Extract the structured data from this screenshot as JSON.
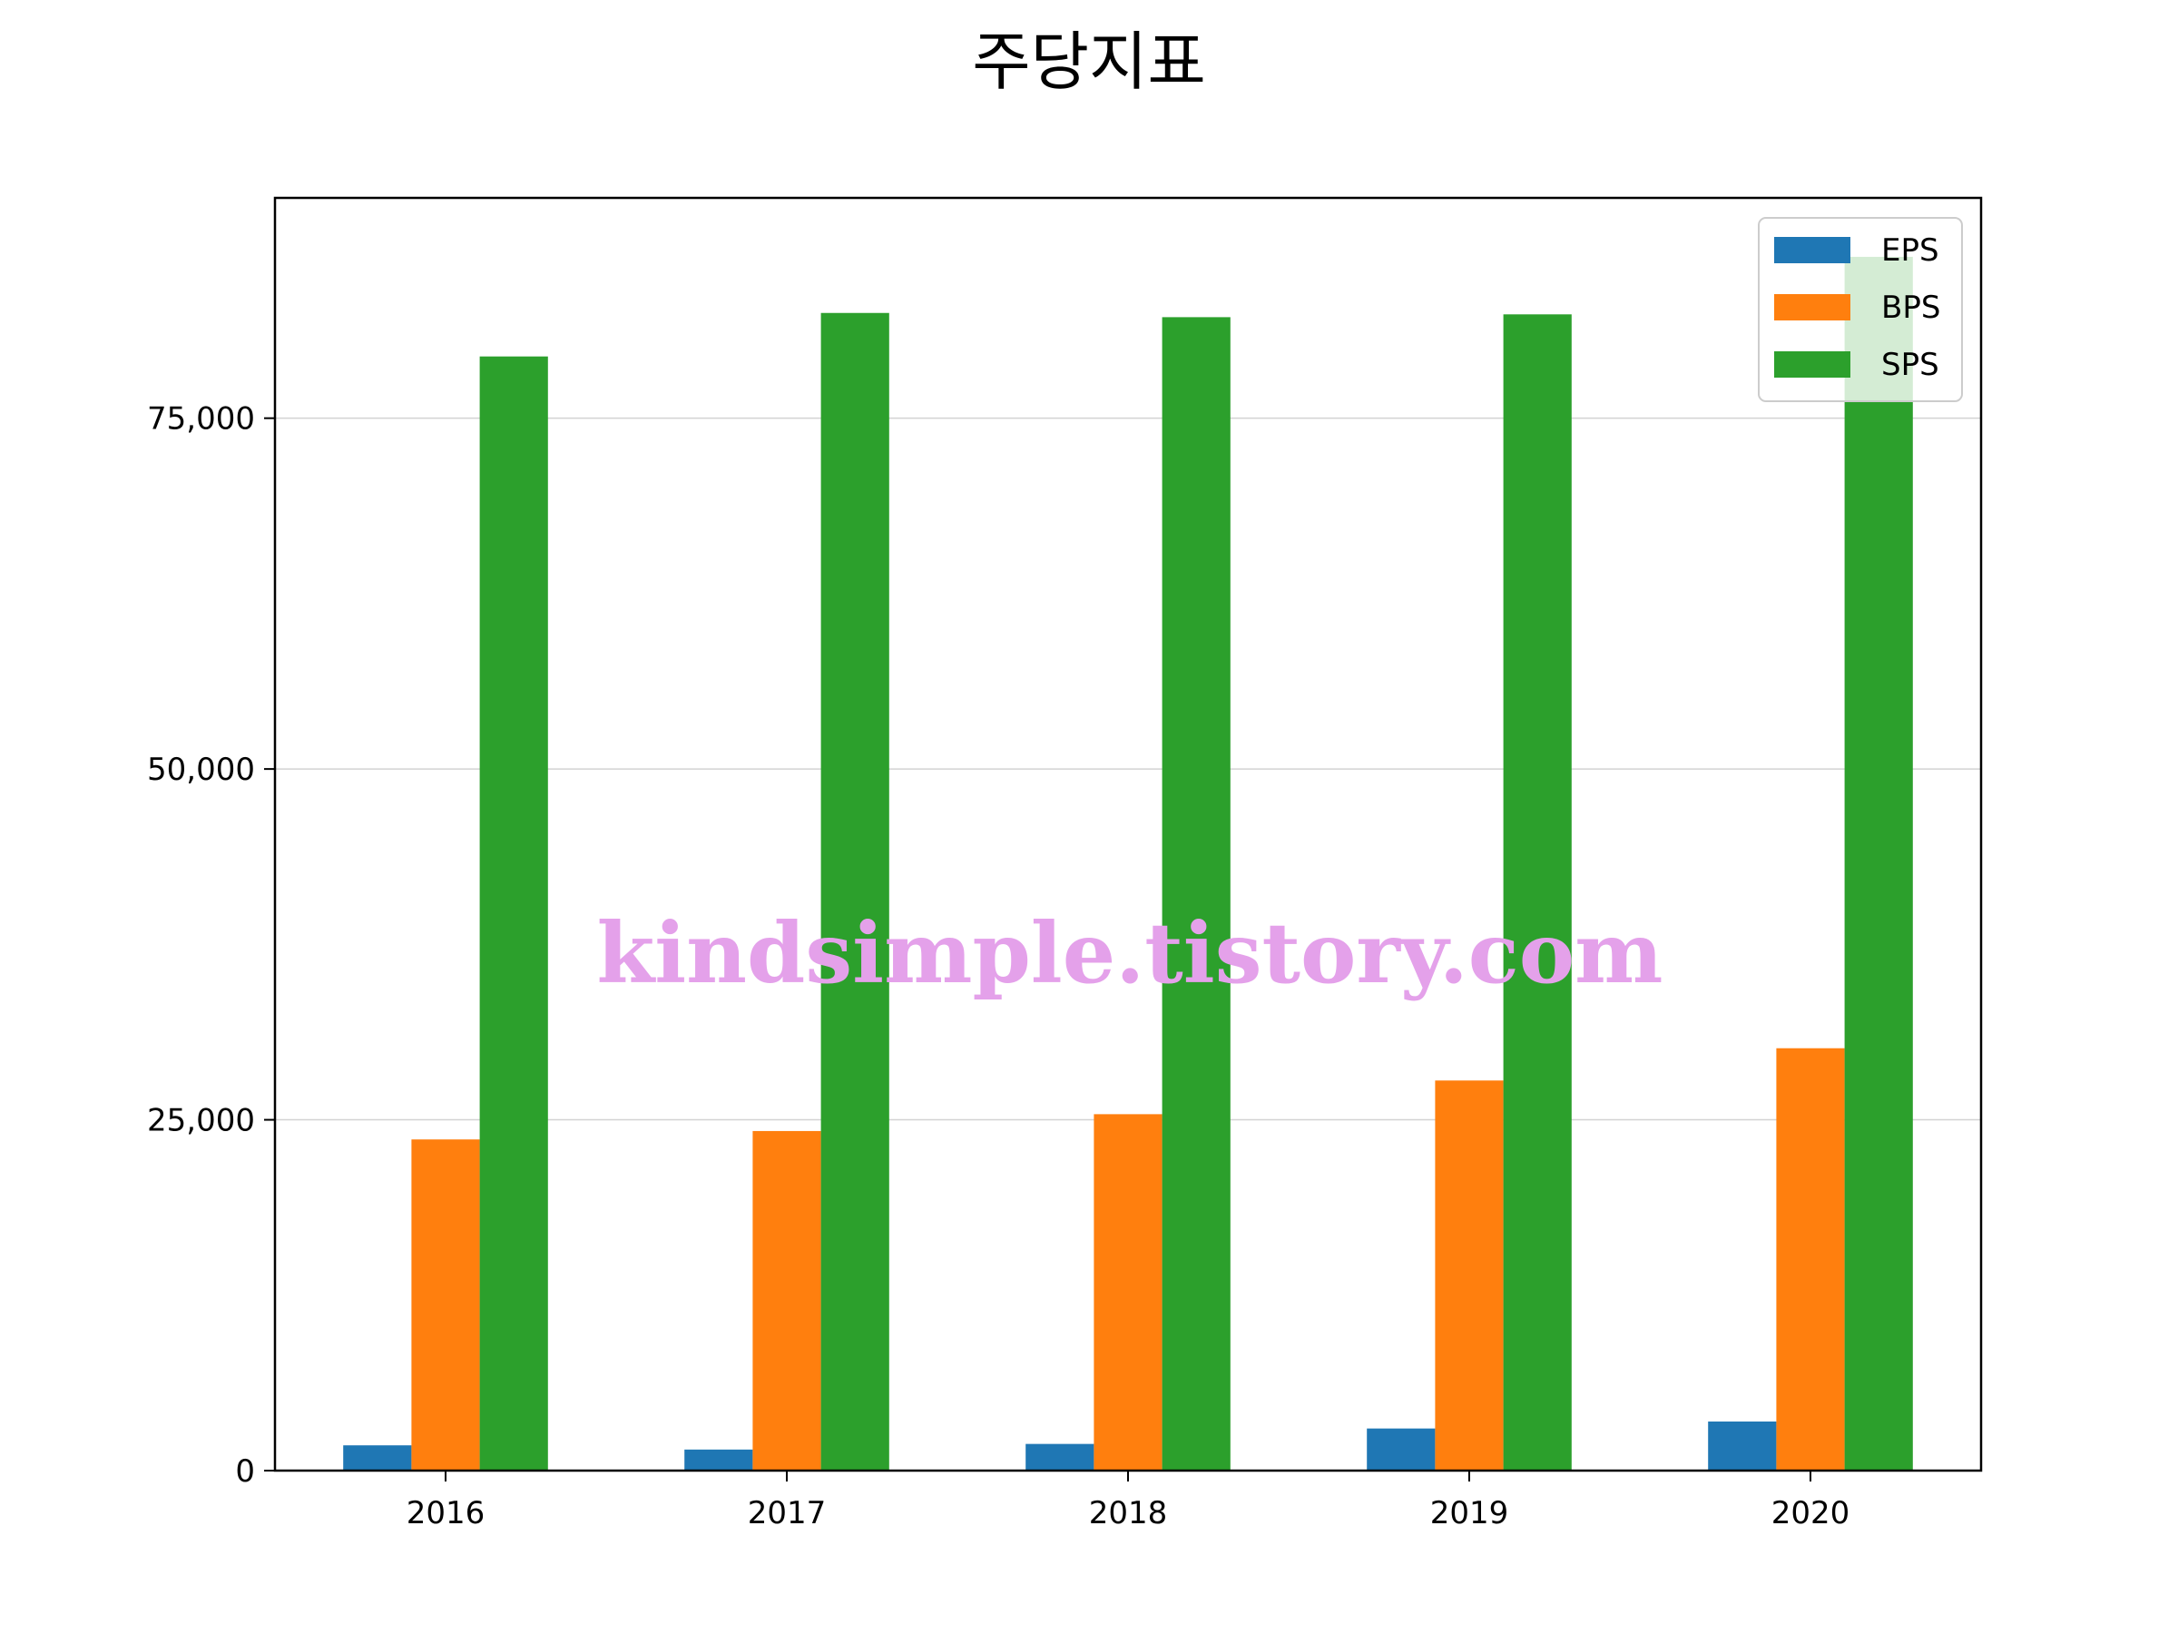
{
  "chart_data": {
    "type": "bar",
    "title": "주당지표",
    "xlabel": "",
    "ylabel": "",
    "categories": [
      "2016",
      "2017",
      "2018",
      "2019",
      "2020"
    ],
    "series": [
      {
        "name": "EPS",
        "color": "#1f77b4",
        "values": [
          1800,
          1500,
          1900,
          3000,
          3500
        ]
      },
      {
        "name": "BPS",
        "color": "#ff7f0e",
        "values": [
          23600,
          24200,
          25400,
          27800,
          30100
        ]
      },
      {
        "name": "SPS",
        "color": "#2ca02c",
        "values": [
          79400,
          82500,
          82200,
          82400,
          86500
        ]
      }
    ],
    "ylim": [
      0,
      90700
    ],
    "yticks": [
      0,
      25000,
      50000,
      75000
    ],
    "ytick_labels": [
      "0",
      "25,000",
      "50,000",
      "75,000"
    ],
    "grid": "horizontal",
    "legend_position": "top-right",
    "watermark": "kindsimple.tistory.com",
    "watermark_color": "#e4a1ea"
  }
}
